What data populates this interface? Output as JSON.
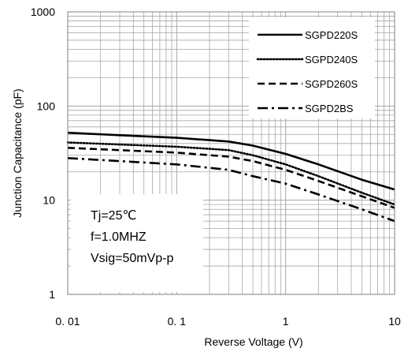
{
  "chart_data": {
    "type": "line",
    "xlabel": "Reverse Voltage (V)",
    "ylabel": "Junction Capacitance (pF)",
    "x_scale": "log",
    "y_scale": "log",
    "xlim": [
      0.01,
      10
    ],
    "ylim": [
      1,
      1000
    ],
    "x_ticks": [
      "0. 01",
      "0. 1",
      "1",
      "10"
    ],
    "y_ticks": [
      "1",
      "10",
      "100",
      "1000"
    ],
    "grid": true,
    "legend_position": "top-right",
    "series": [
      {
        "name": "SGPD220S",
        "style": "solid",
        "x": [
          0.01,
          0.03,
          0.1,
          0.3,
          0.5,
          1,
          2,
          5,
          10
        ],
        "y": [
          52,
          49,
          46,
          42,
          38,
          31,
          24,
          16.5,
          13
        ]
      },
      {
        "name": "SGPD240S",
        "style": "dotted",
        "x": [
          0.01,
          0.03,
          0.1,
          0.3,
          0.5,
          1,
          2,
          5,
          10
        ],
        "y": [
          41,
          39,
          37,
          34,
          30,
          24,
          18,
          12,
          9
        ]
      },
      {
        "name": "SGPD260S",
        "style": "dashed",
        "x": [
          0.01,
          0.03,
          0.1,
          0.3,
          0.5,
          1,
          2,
          5,
          10
        ],
        "y": [
          36,
          34,
          32,
          29,
          26,
          21,
          16,
          11,
          8.3
        ]
      },
      {
        "name": "SGPD2BS",
        "style": "dashdot",
        "x": [
          0.01,
          0.03,
          0.1,
          0.3,
          0.5,
          1,
          2,
          5,
          10
        ],
        "y": [
          28,
          26,
          24,
          21,
          18,
          15,
          11.5,
          8,
          6
        ]
      }
    ],
    "annotations": [
      "Tj=25℃",
      "f=1.0MHZ",
      "Vsig=50mVp-p"
    ]
  },
  "colors": {
    "line": "#000000",
    "grid": "#a6a6a6",
    "background": "#ffffff"
  }
}
